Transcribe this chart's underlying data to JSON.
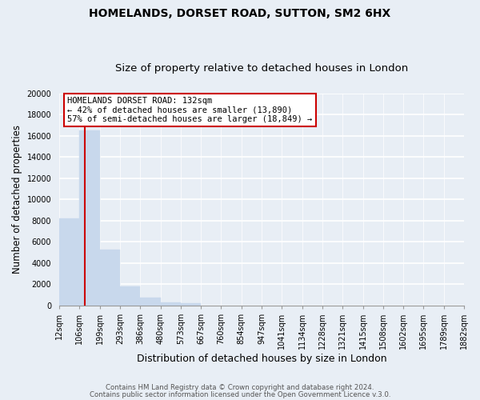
{
  "title": "HOMELANDS, DORSET ROAD, SUTTON, SM2 6HX",
  "subtitle": "Size of property relative to detached houses in London",
  "xlabel": "Distribution of detached houses by size in London",
  "ylabel": "Number of detached properties",
  "bar_color": "#c8d8ec",
  "vline_color": "#cc0000",
  "bin_labels": [
    "12sqm",
    "106sqm",
    "199sqm",
    "293sqm",
    "386sqm",
    "480sqm",
    "573sqm",
    "667sqm",
    "760sqm",
    "854sqm",
    "947sqm",
    "1041sqm",
    "1134sqm",
    "1228sqm",
    "1321sqm",
    "1415sqm",
    "1508sqm",
    "1602sqm",
    "1695sqm",
    "1789sqm",
    "1882sqm"
  ],
  "bar_heights": [
    8200,
    16550,
    5300,
    1800,
    750,
    300,
    200,
    0,
    0,
    0,
    0,
    0,
    0,
    0,
    0,
    0,
    0,
    0,
    0,
    0
  ],
  "ylim": [
    0,
    20000
  ],
  "yticks": [
    0,
    2000,
    4000,
    6000,
    8000,
    10000,
    12000,
    14000,
    16000,
    18000,
    20000
  ],
  "annotation_title": "HOMELANDS DORSET ROAD: 132sqm",
  "annotation_line1": "← 42% of detached houses are smaller (13,890)",
  "annotation_line2": "57% of semi-detached houses are larger (18,849) →",
  "annotation_box_color": "#ffffff",
  "annotation_box_edge": "#cc0000",
  "footer1": "Contains HM Land Registry data © Crown copyright and database right 2024.",
  "footer2": "Contains public sector information licensed under the Open Government Licence v.3.0.",
  "title_fontsize": 10,
  "subtitle_fontsize": 9.5,
  "tick_fontsize": 7,
  "ylabel_fontsize": 8.5,
  "xlabel_fontsize": 9,
  "background_color": "#e8eef5",
  "plot_bg_color": "#e8eef5",
  "grid_color": "#ffffff"
}
